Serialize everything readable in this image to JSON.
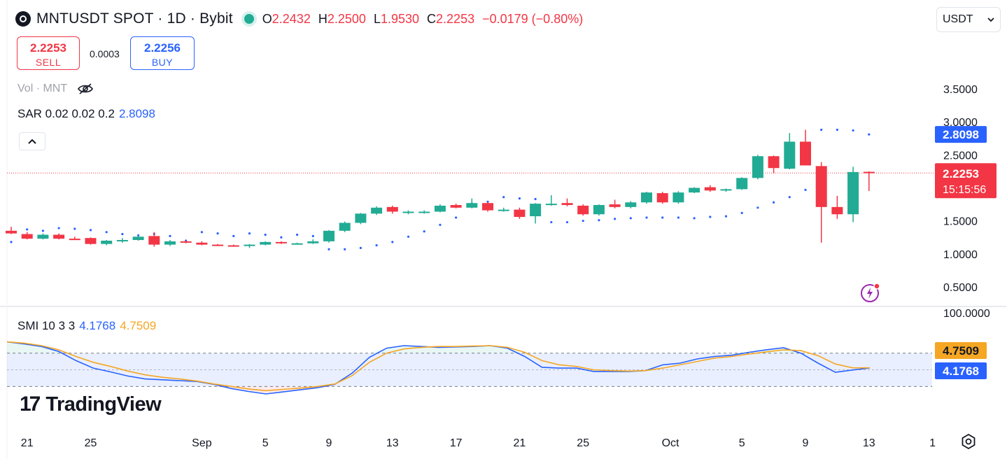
{
  "header": {
    "symbol": "MNTUSDT SPOT · 1D · Bybit",
    "open_label": "O",
    "open": "2.2432",
    "high_label": "H",
    "high": "2.2500",
    "low_label": "L",
    "low": "1.9530",
    "close_label": "C",
    "close": "2.2253",
    "change": "−0.0179 (−0.80%)"
  },
  "trade": {
    "sell_price": "2.2253",
    "sell_label": "SELL",
    "spread": "0.0003",
    "buy_price": "2.2256",
    "buy_label": "BUY"
  },
  "indicators": {
    "volume_label": "Vol · MNT",
    "sar_label": "SAR 0.02 0.02 0.2",
    "sar_value": "2.8098",
    "smi_label": "SMI 10 3 3",
    "smi_value1": "4.1768",
    "smi_value2": "4.7509"
  },
  "currency_selector": {
    "value": "USDT",
    "icon": "chevron-down-icon"
  },
  "collapse_button": {
    "icon": "chevron-up-icon"
  },
  "branding": {
    "name": "TradingView"
  },
  "colors": {
    "up": "#22ab94",
    "down": "#f23645",
    "sar": "#2962ff",
    "smi": "#2962ff",
    "signal": "#f5a623",
    "band": "#2962ff"
  },
  "chart_data": [
    {
      "type": "candlestick",
      "x_tick_labels": [
        "21",
        "25",
        "Sep",
        "5",
        "9",
        "13",
        "17",
        "21",
        "25",
        "Oct",
        "5",
        "9",
        "13",
        "1"
      ],
      "y_tick_labels": [
        "3.5000",
        "3.0000",
        "2.5000",
        "1.5000",
        "1.0000",
        "0.5000"
      ],
      "ylim": [
        0.3,
        3.65
      ],
      "last_price_label": "2.2253",
      "countdown_label": "15:15:56",
      "sar_price_label": "2.8098",
      "candles": [
        {
          "o": 1.35,
          "h": 1.41,
          "l": 1.3,
          "c": 1.31
        },
        {
          "o": 1.3,
          "h": 1.33,
          "l": 1.22,
          "c": 1.23
        },
        {
          "o": 1.23,
          "h": 1.31,
          "l": 1.22,
          "c": 1.29
        },
        {
          "o": 1.29,
          "h": 1.31,
          "l": 1.22,
          "c": 1.23
        },
        {
          "o": 1.23,
          "h": 1.26,
          "l": 1.21,
          "c": 1.225
        },
        {
          "o": 1.24,
          "h": 1.25,
          "l": 1.14,
          "c": 1.15
        },
        {
          "o": 1.15,
          "h": 1.21,
          "l": 1.13,
          "c": 1.2
        },
        {
          "o": 1.19,
          "h": 1.24,
          "l": 1.17,
          "c": 1.21
        },
        {
          "o": 1.21,
          "h": 1.27,
          "l": 1.2,
          "c": 1.26
        },
        {
          "o": 1.27,
          "h": 1.33,
          "l": 1.11,
          "c": 1.14
        },
        {
          "o": 1.14,
          "h": 1.21,
          "l": 1.12,
          "c": 1.19
        },
        {
          "o": 1.19,
          "h": 1.2,
          "l": 1.16,
          "c": 1.17
        },
        {
          "o": 1.17,
          "h": 1.19,
          "l": 1.13,
          "c": 1.14
        },
        {
          "o": 1.14,
          "h": 1.15,
          "l": 1.12,
          "c": 1.13
        },
        {
          "o": 1.13,
          "h": 1.14,
          "l": 1.12,
          "c": 1.12
        },
        {
          "o": 1.12,
          "h": 1.15,
          "l": 1.09,
          "c": 1.14
        },
        {
          "o": 1.14,
          "h": 1.19,
          "l": 1.13,
          "c": 1.18
        },
        {
          "o": 1.18,
          "h": 1.19,
          "l": 1.15,
          "c": 1.16
        },
        {
          "o": 1.16,
          "h": 1.17,
          "l": 1.15,
          "c": 1.16
        },
        {
          "o": 1.16,
          "h": 1.22,
          "l": 1.15,
          "c": 1.19
        },
        {
          "o": 1.19,
          "h": 1.36,
          "l": 1.17,
          "c": 1.35
        },
        {
          "o": 1.35,
          "h": 1.49,
          "l": 1.33,
          "c": 1.47
        },
        {
          "o": 1.47,
          "h": 1.62,
          "l": 1.45,
          "c": 1.61
        },
        {
          "o": 1.61,
          "h": 1.72,
          "l": 1.59,
          "c": 1.7
        },
        {
          "o": 1.71,
          "h": 1.73,
          "l": 1.61,
          "c": 1.64
        },
        {
          "o": 1.64,
          "h": 1.66,
          "l": 1.6,
          "c": 1.64
        },
        {
          "o": 1.64,
          "h": 1.66,
          "l": 1.61,
          "c": 1.64
        },
        {
          "o": 1.64,
          "h": 1.75,
          "l": 1.63,
          "c": 1.73
        },
        {
          "o": 1.74,
          "h": 1.76,
          "l": 1.69,
          "c": 1.7
        },
        {
          "o": 1.7,
          "h": 1.84,
          "l": 1.69,
          "c": 1.77
        },
        {
          "o": 1.77,
          "h": 1.78,
          "l": 1.64,
          "c": 1.66
        },
        {
          "o": 1.66,
          "h": 1.7,
          "l": 1.64,
          "c": 1.67
        },
        {
          "o": 1.67,
          "h": 1.7,
          "l": 1.53,
          "c": 1.56
        },
        {
          "o": 1.57,
          "h": 1.77,
          "l": 1.46,
          "c": 1.76
        },
        {
          "o": 1.75,
          "h": 1.89,
          "l": 1.73,
          "c": 1.76
        },
        {
          "o": 1.77,
          "h": 1.84,
          "l": 1.72,
          "c": 1.74
        },
        {
          "o": 1.73,
          "h": 1.75,
          "l": 1.58,
          "c": 1.6
        },
        {
          "o": 1.6,
          "h": 1.75,
          "l": 1.58,
          "c": 1.74
        },
        {
          "o": 1.75,
          "h": 1.82,
          "l": 1.69,
          "c": 1.71
        },
        {
          "o": 1.71,
          "h": 1.8,
          "l": 1.69,
          "c": 1.78
        },
        {
          "o": 1.78,
          "h": 1.94,
          "l": 1.76,
          "c": 1.93
        },
        {
          "o": 1.92,
          "h": 1.94,
          "l": 1.76,
          "c": 1.78
        },
        {
          "o": 1.78,
          "h": 1.95,
          "l": 1.76,
          "c": 1.93
        },
        {
          "o": 1.93,
          "h": 2.01,
          "l": 1.92,
          "c": 2.0
        },
        {
          "o": 2.01,
          "h": 2.04,
          "l": 1.94,
          "c": 1.96
        },
        {
          "o": 1.96,
          "h": 1.99,
          "l": 1.94,
          "c": 1.98
        },
        {
          "o": 1.98,
          "h": 2.16,
          "l": 1.97,
          "c": 2.15
        },
        {
          "o": 2.15,
          "h": 2.5,
          "l": 2.13,
          "c": 2.48
        },
        {
          "o": 2.48,
          "h": 2.49,
          "l": 2.22,
          "c": 2.3
        },
        {
          "o": 2.29,
          "h": 2.83,
          "l": 2.28,
          "c": 2.7
        },
        {
          "o": 2.7,
          "h": 2.88,
          "l": 2.34,
          "c": 2.34
        },
        {
          "o": 2.33,
          "h": 2.39,
          "l": 1.17,
          "c": 1.71
        },
        {
          "o": 1.71,
          "h": 1.88,
          "l": 1.53,
          "c": 1.6
        },
        {
          "o": 1.6,
          "h": 2.32,
          "l": 1.48,
          "c": 2.24
        },
        {
          "o": 2.2432,
          "h": 2.25,
          "l": 1.953,
          "c": 2.2253
        }
      ],
      "sar": [
        1.18,
        1.37,
        1.35,
        1.39,
        1.38,
        1.36,
        1.33,
        1.3,
        1.28,
        1.3,
        1.27,
        1.2,
        1.33,
        1.31,
        1.27,
        1.31,
        1.29,
        1.25,
        1.29,
        1.27,
        1.07,
        1.07,
        1.09,
        1.13,
        1.18,
        1.26,
        1.34,
        1.44,
        1.55,
        1.76,
        1.79,
        1.86,
        1.84,
        1.83,
        1.48,
        1.48,
        1.5,
        1.51,
        1.53,
        1.54,
        1.55,
        1.55,
        1.55,
        1.54,
        1.56,
        1.57,
        1.62,
        1.7,
        1.78,
        1.86,
        1.97,
        2.88,
        2.88,
        2.87,
        2.81
      ]
    },
    {
      "type": "line",
      "title": "SMI 10 3 3",
      "y_tick_labels": [
        "100.0000"
      ],
      "ylim": [
        -110,
        105
      ],
      "band_levels": [
        40,
        -40
      ],
      "value_labels": [
        "4.7509",
        "4.1768"
      ],
      "series": [
        {
          "name": "SMI",
          "values": [
            67,
            62,
            56,
            44,
            22,
            4,
            -5,
            -15,
            -22,
            -24,
            -26,
            -28,
            -35,
            -45,
            -52,
            -58,
            -53,
            -48,
            -43,
            -35,
            -8,
            30,
            52,
            58,
            56,
            54,
            55,
            56,
            58,
            52,
            32,
            6,
            4,
            4,
            -4,
            -4,
            -4,
            -2,
            12,
            16,
            26,
            32,
            35,
            42,
            48,
            53,
            40,
            16,
            -6,
            -0.5,
            4.18
          ]
        },
        {
          "name": "Signal",
          "values": [
            67,
            64,
            58,
            48,
            32,
            18,
            8,
            -3,
            -12,
            -18,
            -22,
            -27,
            -34,
            -40,
            -46,
            -50,
            -47,
            -44,
            -40,
            -34,
            -14,
            18,
            40,
            50,
            54,
            56,
            56,
            57,
            58,
            54,
            42,
            22,
            12,
            8,
            0,
            -2,
            -3,
            -2,
            4,
            12,
            20,
            28,
            32,
            38,
            43,
            48,
            46,
            34,
            14,
            4.75,
            4.75
          ]
        }
      ]
    }
  ]
}
